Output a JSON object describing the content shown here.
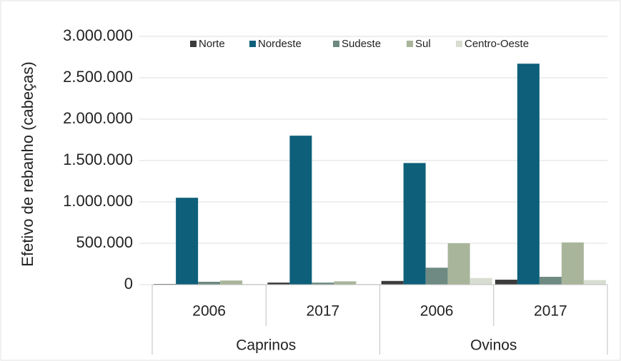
{
  "chart_data": {
    "type": "bar",
    "y_label": "Efetivo de rebanho (cabeças)",
    "category_groups": [
      {
        "label": "Caprinos",
        "categories": [
          "2006",
          "2017"
        ]
      },
      {
        "label": "Ovinos",
        "categories": [
          "2006",
          "2017"
        ]
      }
    ],
    "series": [
      {
        "name": "Norte",
        "color": "#3b3b3b",
        "values": [
          8000,
          25000,
          45000,
          60000
        ]
      },
      {
        "name": "Nordeste",
        "color": "#0d5f7a",
        "values": [
          1050000,
          1800000,
          1470000,
          2670000
        ]
      },
      {
        "name": "Sudeste",
        "color": "#6e8a82",
        "values": [
          35000,
          25000,
          205000,
          95000
        ]
      },
      {
        "name": "Sul",
        "color": "#a8b59a",
        "values": [
          50000,
          40000,
          500000,
          510000
        ]
      },
      {
        "name": "Centro-Oeste",
        "color": "#d8ddd1",
        "values": [
          8000,
          8000,
          80000,
          55000
        ]
      }
    ],
    "ylim": [
      0,
      3000000
    ],
    "yticks": [
      0,
      {
        "value": 500000,
        "label": "500.000"
      },
      {
        "value": 1000000,
        "label": "1.000.000"
      },
      {
        "value": 1500000,
        "label": "1.500.000"
      },
      {
        "value": 2000000,
        "label": "2.000.000"
      },
      {
        "value": 2500000,
        "label": "2.500.000"
      },
      {
        "value": 3000000,
        "label": "3.000.000"
      }
    ],
    "grid": true
  }
}
